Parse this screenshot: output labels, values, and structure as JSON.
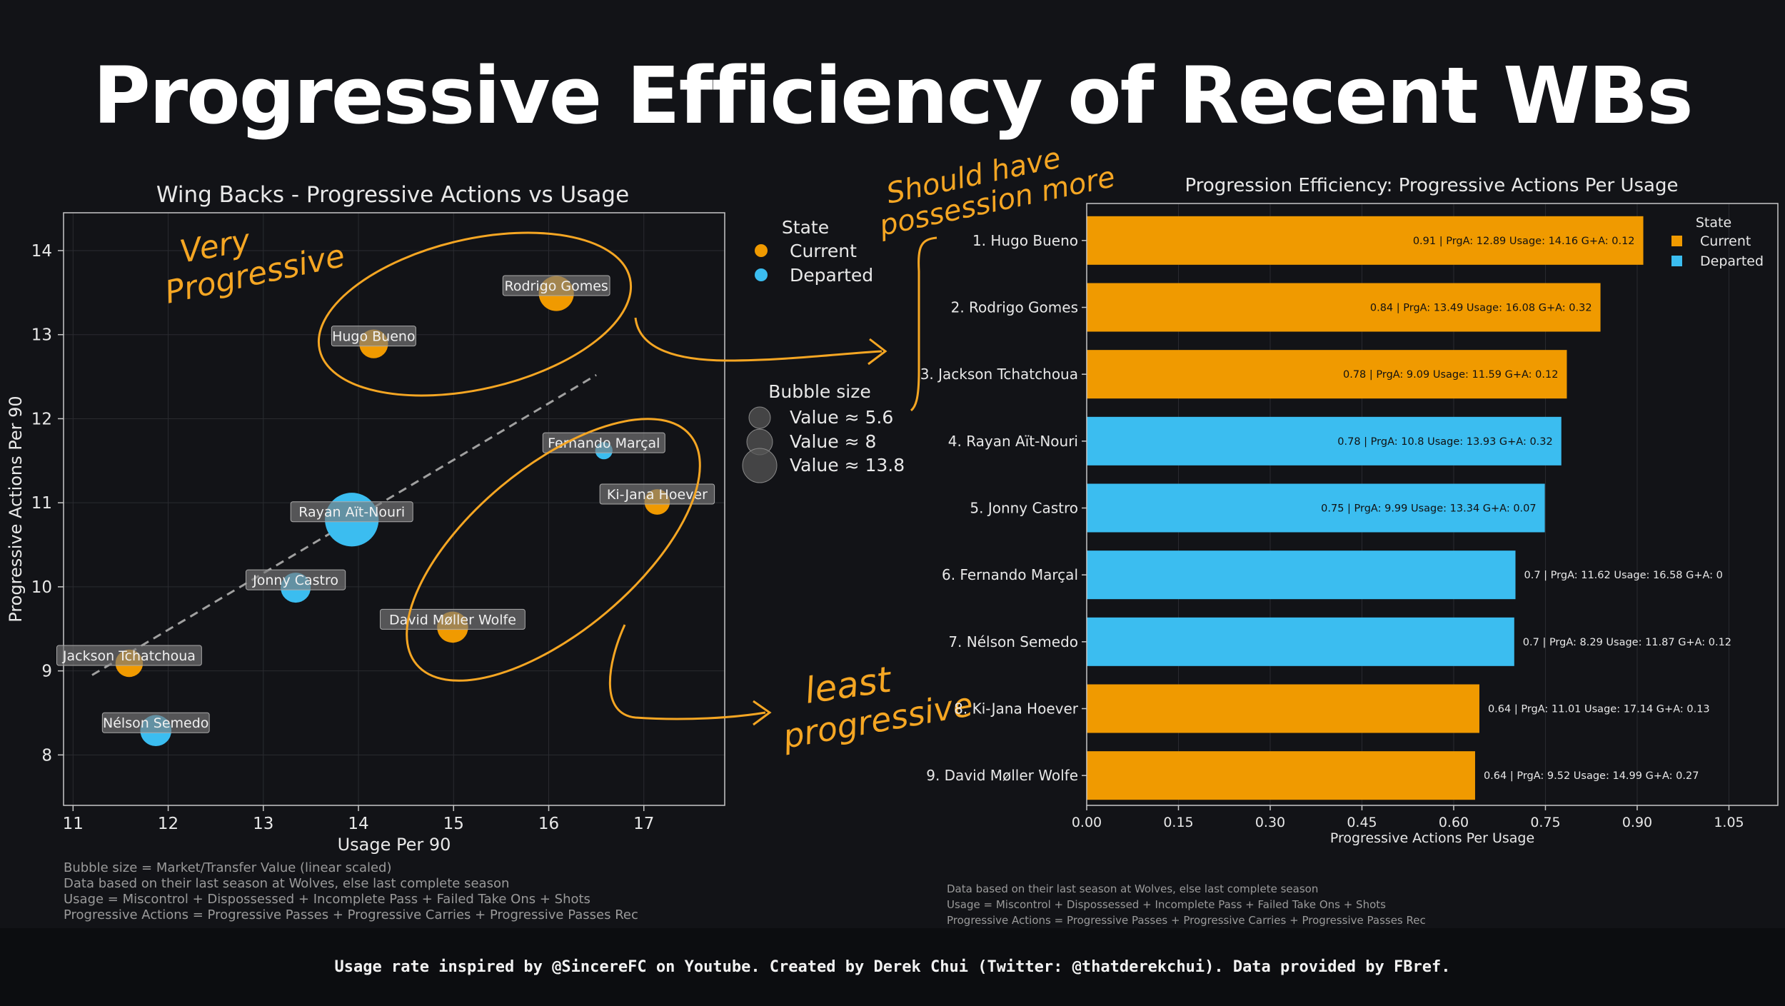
{
  "title": "Progressive Efficiency of Recent WBs",
  "colors": {
    "current": "#F09A00",
    "departed": "#3BBDF0",
    "annotation": "#F5A623",
    "background": "#121317"
  },
  "legend": {
    "state_title": "State",
    "current_label": "Current",
    "departed_label": "Departed",
    "bubble_title": "Bubble size",
    "bubble_entries": [
      "Value ≈ 5.6",
      "Value ≈ 8",
      "Value ≈ 13.8"
    ],
    "bubble_values": [
      5.6,
      8,
      13.8
    ]
  },
  "annotations": {
    "very_progressive": [
      "Very",
      "Progressive"
    ],
    "should_have": [
      "Should have",
      "possession more"
    ],
    "least_progressive": [
      "least",
      "progressive"
    ]
  },
  "scatter_notes": [
    "Bubble size = Market/Transfer Value (linear scaled)",
    "Data based on their last season at Wolves, else last complete season",
    "Usage = Miscontrol + Dispossessed + Incomplete Pass + Failed Take Ons + Shots",
    "Progressive Actions = Progressive Passes + Progressive Carries + Progressive Passes Rec"
  ],
  "bar_notes": [
    "Data based on their last season at Wolves, else last complete season",
    "Usage = Miscontrol + Dispossessed + Incomplete Pass + Failed Take Ons + Shots",
    "Progressive Actions = Progressive Passes + Progressive Carries + Progressive Passes Rec"
  ],
  "footer": "Usage rate inspired by @SincereFC on Youtube. Created by Derek Chui (Twitter: @thatderekchui). Data provided by FBref.",
  "chart_data": [
    {
      "type": "scatter",
      "title": "Wing Backs - Progressive Actions vs Usage",
      "xlabel": "Usage Per 90",
      "ylabel": "Progressive Actions Per 90",
      "xlim": [
        10.9,
        17.85
      ],
      "ylim": [
        7.4,
        14.45
      ],
      "xticks": [
        11,
        12,
        13,
        14,
        15,
        16,
        17
      ],
      "yticks": [
        8,
        9,
        10,
        11,
        12,
        13,
        14
      ],
      "grid": true,
      "legend_position": "outside-right",
      "trendline": {
        "x": [
          11.2,
          16.5
        ],
        "y": [
          8.95,
          12.52
        ]
      },
      "points": [
        {
          "name": "Hugo Bueno",
          "x": 14.16,
          "y": 12.89,
          "state": "Current",
          "value": 8
        },
        {
          "name": "Rodrigo Gomes",
          "x": 16.08,
          "y": 13.49,
          "state": "Current",
          "value": 13.8
        },
        {
          "name": "Jackson Tchatchoua",
          "x": 11.59,
          "y": 9.09,
          "state": "Current",
          "value": 7
        },
        {
          "name": "Rayan Aït-Nouri",
          "x": 13.93,
          "y": 10.8,
          "state": "Departed",
          "value": 40
        },
        {
          "name": "Jonny Castro",
          "x": 13.34,
          "y": 9.99,
          "state": "Departed",
          "value": 9
        },
        {
          "name": "Fernando Marçal",
          "x": 16.58,
          "y": 11.62,
          "state": "Departed",
          "value": 1.5
        },
        {
          "name": "Nélson Semedo",
          "x": 11.87,
          "y": 8.29,
          "state": "Departed",
          "value": 10
        },
        {
          "name": "Ki-Jana Hoever",
          "x": 17.14,
          "y": 11.01,
          "state": "Current",
          "value": 5.6
        },
        {
          "name": "David Møller Wolfe",
          "x": 14.99,
          "y": 9.52,
          "state": "Current",
          "value": 10
        }
      ]
    },
    {
      "type": "bar",
      "orientation": "horizontal",
      "title": "Progression Efficiency: Progressive Actions Per Usage",
      "xlabel": "Progressive Actions Per Usage",
      "xlim": [
        0,
        1.13
      ],
      "xticks": [
        "0.00",
        "0.15",
        "0.30",
        "0.45",
        "0.60",
        "0.75",
        "0.90",
        "1.05"
      ],
      "legend_position": "top-right",
      "categories": [
        "1. Hugo Bueno",
        "2. Rodrigo Gomes",
        "3. Jackson Tchatchoua",
        "4. Rayan Aït-Nouri",
        "5. Jonny Castro",
        "6. Fernando Marçal",
        "7. Nélson Semedo",
        "8. Ki-Jana Hoever",
        "9. David Møller Wolfe"
      ],
      "values": [
        0.91,
        0.84,
        0.785,
        0.776,
        0.749,
        0.701,
        0.699,
        0.642,
        0.635
      ],
      "states": [
        "Current",
        "Current",
        "Current",
        "Departed",
        "Departed",
        "Departed",
        "Departed",
        "Current",
        "Current"
      ],
      "labels": [
        "0.91   |   PrgA: 12.89   Usage: 14.16   G+A: 0.12",
        "0.84   |   PrgA: 13.49   Usage: 16.08   G+A: 0.32",
        "0.78   |   PrgA: 9.09   Usage: 11.59   G+A: 0.12",
        "0.78   |   PrgA: 10.8   Usage: 13.93   G+A: 0.32",
        "0.75   |   PrgA: 9.99   Usage: 13.34   G+A: 0.07",
        "0.7   |   PrgA: 11.62   Usage: 16.58   G+A: 0",
        "0.7   |   PrgA: 8.29   Usage: 11.87   G+A: 0.12",
        "0.64   |   PrgA: 11.01   Usage: 17.14   G+A: 0.13",
        "0.64   |   PrgA: 9.52   Usage: 14.99   G+A: 0.27"
      ]
    }
  ]
}
